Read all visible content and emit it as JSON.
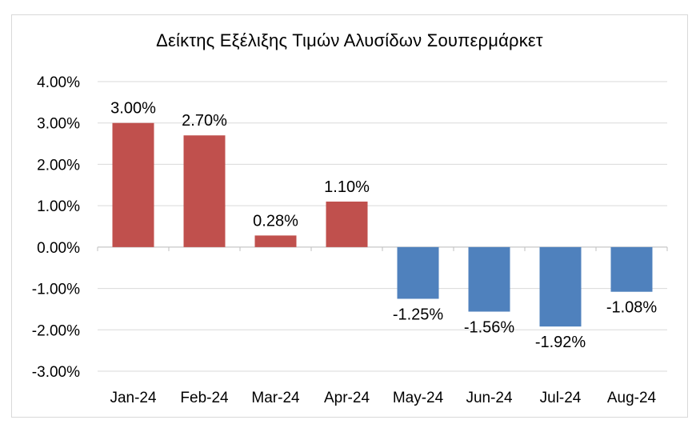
{
  "chart_data": {
    "type": "bar",
    "title": "Δείκτης Εξέλιξης Τιμών Αλυσίδων Σουπερμάρκετ",
    "categories": [
      "Jan-24",
      "Feb-24",
      "Mar-24",
      "Apr-24",
      "May-24",
      "Jun-24",
      "Jul-24",
      "Aug-24"
    ],
    "values": [
      3.0,
      2.7,
      0.28,
      1.1,
      -1.25,
      -1.56,
      -1.92,
      -1.08
    ],
    "data_labels": [
      "3.00%",
      "2.70%",
      "0.28%",
      "1.10%",
      "-1.25%",
      "-1.56%",
      "-1.92%",
      "-1.08%"
    ],
    "y_ticks": [
      4,
      3,
      2,
      1,
      0,
      -1,
      -2,
      -3
    ],
    "y_tick_labels": [
      "4.00%",
      "3.00%",
      "2.00%",
      "1.00%",
      "0.00%",
      "-1.00%",
      "-2.00%",
      "-3.00%"
    ],
    "ylim": [
      -3,
      4
    ],
    "unit": "%",
    "grid": true,
    "legend": false,
    "colors": {
      "positive": "#c0504d",
      "negative": "#4f81bd",
      "grid": "#d9d9d9"
    }
  }
}
